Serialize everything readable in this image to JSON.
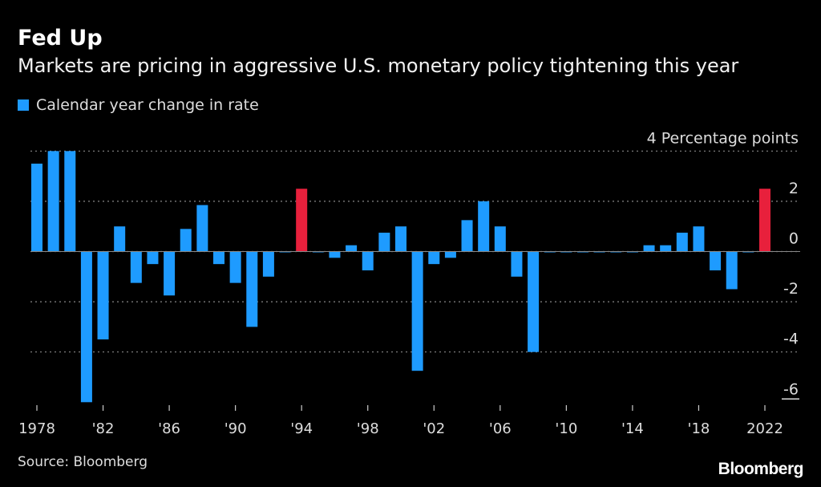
{
  "title": "Fed Up",
  "subtitle": "Markets are pricing in aggressive U.S. monetary policy tightening this year",
  "source": "Source: Bloomberg",
  "logo": "Bloomberg",
  "chart_data": {
    "type": "bar",
    "legend": [
      {
        "name": "Calendar year change in rate",
        "color": "#1e9bff"
      }
    ],
    "legend_placement": "top-left",
    "unit_label": "Percentage points",
    "ylim": [
      -6,
      4
    ],
    "yticks": [
      4,
      2,
      0,
      -2,
      -4,
      -6
    ],
    "grid": true,
    "colors": {
      "default": "#1e9bff",
      "highlight": "#e8203c"
    },
    "highlight_years": [
      1994,
      2022
    ],
    "x_tick_labels": [
      {
        "year": 1978,
        "label": "1978"
      },
      {
        "year": 1982,
        "label": "'82"
      },
      {
        "year": 1986,
        "label": "'86"
      },
      {
        "year": 1990,
        "label": "'90"
      },
      {
        "year": 1994,
        "label": "'94"
      },
      {
        "year": 1998,
        "label": "'98"
      },
      {
        "year": 2002,
        "label": "'02"
      },
      {
        "year": 2006,
        "label": "'06"
      },
      {
        "year": 2010,
        "label": "'10"
      },
      {
        "year": 2014,
        "label": "'14"
      },
      {
        "year": 2018,
        "label": "'18"
      },
      {
        "year": 2022,
        "label": "2022"
      }
    ],
    "categories": [
      1978,
      1979,
      1980,
      1981,
      1982,
      1983,
      1984,
      1985,
      1986,
      1987,
      1988,
      1989,
      1990,
      1991,
      1992,
      1993,
      1994,
      1995,
      1996,
      1997,
      1998,
      1999,
      2000,
      2001,
      2002,
      2003,
      2004,
      2005,
      2006,
      2007,
      2008,
      2009,
      2010,
      2011,
      2012,
      2013,
      2014,
      2015,
      2016,
      2017,
      2018,
      2019,
      2020,
      2021,
      2022
    ],
    "values": [
      3.5,
      4,
      4,
      -6,
      -3.5,
      1,
      -1.25,
      -0.5,
      -1.75,
      0.9,
      1.85,
      -0.5,
      -1.25,
      -3,
      -1,
      0,
      2.5,
      0,
      -0.25,
      0.25,
      -0.75,
      0.75,
      1,
      -4.75,
      -0.5,
      -0.25,
      1.25,
      2,
      1,
      -1,
      -4,
      0,
      0,
      0,
      0,
      0,
      0,
      0.25,
      0.25,
      0.75,
      1,
      -0.75,
      -1.5,
      0,
      2.5
    ]
  }
}
